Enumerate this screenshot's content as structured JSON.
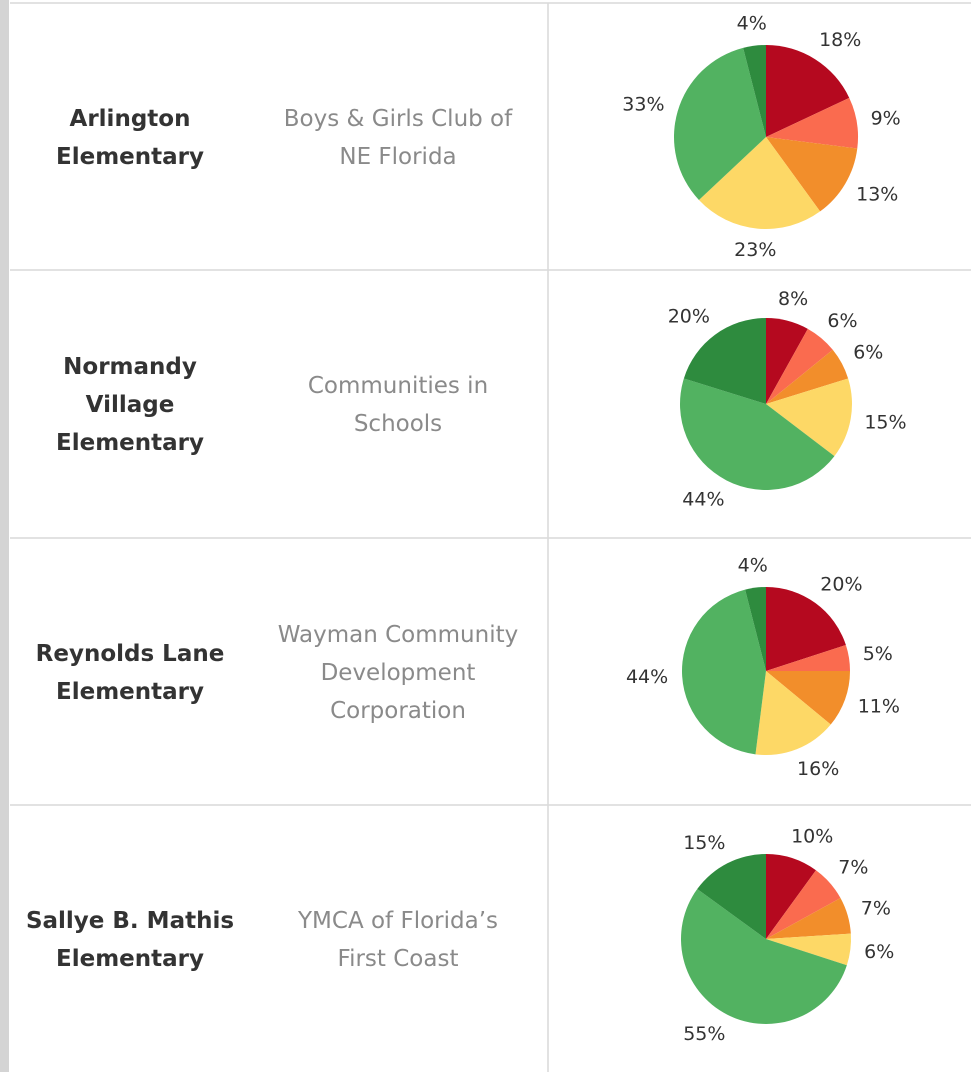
{
  "table": {
    "rows": [
      {
        "school": [
          "Arlington",
          "Elementary"
        ],
        "partner": [
          "Boys & Girls Club of",
          "NE Florida"
        ]
      },
      {
        "school": [
          "Normandy",
          "Village",
          "Elementary"
        ],
        "partner": [
          "Communities in",
          "Schools"
        ]
      },
      {
        "school": [
          "Reynolds Lane",
          "Elementary"
        ],
        "partner": [
          "Wayman Community",
          "Development",
          "Corporation"
        ]
      },
      {
        "school": [
          "Sallye  B. Mathis",
          "Elementary"
        ],
        "partner": [
          "YMCA of Florida’s",
          "First Coast"
        ]
      }
    ]
  },
  "chart_data": [
    {
      "type": "pie",
      "values": [
        18,
        9,
        13,
        23,
        33,
        4
      ],
      "value_labels": [
        "18%",
        "9%",
        "13%",
        "23%",
        "33%",
        "4%"
      ],
      "colors": [
        "#b5091f",
        "#fa6b4f",
        "#f28e2b",
        "#fdd866",
        "#52b261",
        "#2e8b3e"
      ]
    },
    {
      "type": "pie",
      "values": [
        8,
        6,
        6,
        15,
        44,
        20
      ],
      "value_labels": [
        "8%",
        "6%",
        "6%",
        "15%",
        "44%",
        "20%"
      ],
      "colors": [
        "#b5091f",
        "#fa6b4f",
        "#f28e2b",
        "#fdd866",
        "#52b261",
        "#2e8b3e"
      ]
    },
    {
      "type": "pie",
      "values": [
        20,
        5,
        11,
        16,
        44,
        4
      ],
      "value_labels": [
        "20%",
        "5%",
        "11%",
        "16%",
        "44%",
        "4%"
      ],
      "colors": [
        "#b5091f",
        "#fa6b4f",
        "#f28e2b",
        "#fdd866",
        "#52b261",
        "#2e8b3e"
      ]
    },
    {
      "type": "pie",
      "values": [
        10,
        7,
        7,
        6,
        55,
        15
      ],
      "value_labels": [
        "10%",
        "7%",
        "7%",
        "6%",
        "55%",
        "15%"
      ],
      "colors": [
        "#b5091f",
        "#fa6b4f",
        "#f28e2b",
        "#fdd866",
        "#52b261",
        "#2e8b3e"
      ]
    }
  ]
}
